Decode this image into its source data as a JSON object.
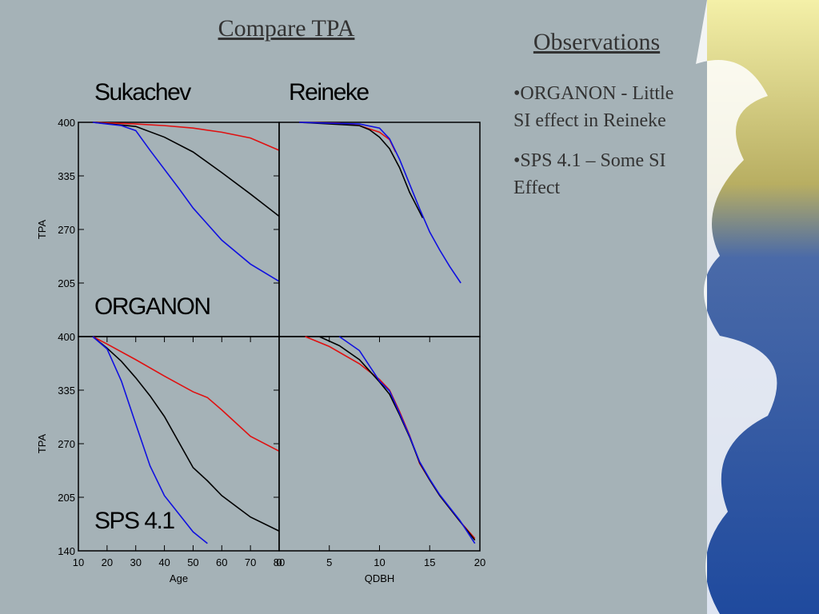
{
  "slide_title": "Compare  TPA",
  "observations": {
    "heading": "Observations",
    "bullets": [
      "•ORGANON - Little SI effect in Reineke",
      "•SPS 4.1 – Some SI Effect"
    ]
  },
  "chart_data": [
    {
      "type": "line",
      "title": "Sukachev",
      "annotation": "ORGANON",
      "y_label": "TPA",
      "xlim": [
        10,
        80
      ],
      "ylim": [
        140,
        400
      ],
      "yticks": [
        205,
        270,
        335,
        400
      ],
      "series": [
        {
          "color": "#e01010",
          "x": [
            15,
            30,
            40,
            50,
            60,
            70,
            80
          ],
          "values": [
            400,
            398,
            396,
            393,
            388,
            381,
            366
          ]
        },
        {
          "color": "#000000",
          "x": [
            15,
            30,
            40,
            50,
            60,
            70,
            80
          ],
          "values": [
            400,
            395,
            382,
            364,
            339,
            313,
            286
          ]
        },
        {
          "color": "#1010e0",
          "x": [
            15,
            25,
            30,
            35,
            45,
            50,
            60,
            70,
            80
          ],
          "values": [
            400,
            396,
            390,
            366,
            320,
            296,
            257,
            228,
            207
          ]
        }
      ]
    },
    {
      "type": "line",
      "title": "Reineke",
      "xlim": [
        0,
        20
      ],
      "ylim": [
        140,
        400
      ],
      "series": [
        {
          "color": "#e01010",
          "x": [
            2,
            6,
            8,
            9,
            10,
            11,
            11.6
          ],
          "values": [
            400,
            399,
            396,
            392,
            388,
            379,
            364
          ]
        },
        {
          "color": "#000000",
          "x": [
            2,
            8,
            9,
            10,
            11,
            12,
            13,
            14.3
          ],
          "values": [
            400,
            396,
            391,
            382,
            368,
            345,
            315,
            284
          ]
        },
        {
          "color": "#1010e0",
          "x": [
            2,
            8,
            10,
            11,
            12,
            13,
            14,
            15,
            16,
            17,
            18.1
          ],
          "values": [
            400,
            398,
            393,
            380,
            355,
            325,
            295,
            267,
            245,
            225,
            205
          ]
        }
      ]
    },
    {
      "type": "line",
      "annotation": "SPS 4.1",
      "y_label": "TPA",
      "x_label": "Age",
      "xlim": [
        10,
        80
      ],
      "ylim": [
        140,
        400
      ],
      "xticks": [
        10,
        20,
        30,
        40,
        50,
        60,
        70,
        80
      ],
      "yticks": [
        140,
        205,
        270,
        335,
        400
      ],
      "series": [
        {
          "color": "#e01010",
          "x": [
            15,
            20,
            30,
            40,
            50,
            55,
            60,
            70,
            80
          ],
          "values": [
            400,
            391,
            372,
            352,
            333,
            326,
            311,
            279,
            261
          ]
        },
        {
          "color": "#000000",
          "x": [
            15,
            20,
            25,
            30,
            35,
            40,
            50,
            55,
            60,
            70,
            80
          ],
          "values": [
            400,
            386,
            370,
            350,
            328,
            303,
            241,
            225,
            207,
            181,
            164
          ]
        },
        {
          "color": "#1010e0",
          "x": [
            15,
            20,
            25,
            30,
            35,
            40,
            45,
            50,
            55
          ],
          "values": [
            400,
            385,
            346,
            294,
            243,
            207,
            185,
            163,
            149
          ]
        }
      ]
    },
    {
      "type": "line",
      "x_label": "QDBH",
      "xlim": [
        0,
        20
      ],
      "ylim": [
        140,
        400
      ],
      "xticks": [
        0,
        5,
        10,
        15,
        20
      ],
      "series": [
        {
          "color": "#e01010",
          "x": [
            2.6,
            5,
            8,
            10,
            11,
            12,
            13,
            14,
            15,
            16,
            18,
            19.5
          ],
          "values": [
            400,
            388,
            367,
            348,
            335,
            309,
            280,
            246,
            226,
            207,
            176,
            155
          ]
        },
        {
          "color": "#000000",
          "x": [
            4,
            6,
            8,
            10,
            11,
            12,
            13,
            14,
            15,
            16,
            18,
            19.5
          ],
          "values": [
            400,
            389,
            372,
            345,
            330,
            305,
            278,
            247,
            226,
            207,
            176,
            153
          ]
        },
        {
          "color": "#1010e0",
          "x": [
            6,
            8,
            10,
            11,
            12,
            13,
            14,
            15,
            16,
            18,
            19.5
          ],
          "values": [
            400,
            383,
            346,
            334,
            307,
            279,
            248,
            227,
            208,
            177,
            149
          ]
        }
      ]
    }
  ]
}
